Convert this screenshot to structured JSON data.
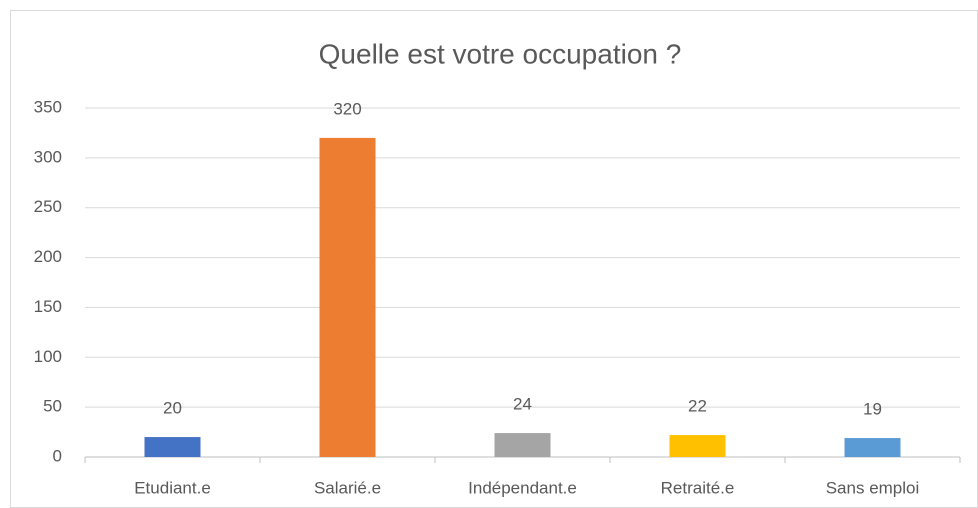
{
  "chart_data": {
    "type": "bar",
    "title": "Quelle est votre occupation ?",
    "categories": [
      "Etudiant.e",
      "Salarié.e",
      "Indépendant.e",
      "Retraité.e",
      "Sans emploi"
    ],
    "values": [
      20,
      320,
      24,
      22,
      19
    ],
    "colors": [
      "#4472c4",
      "#ed7d31",
      "#a5a5a5",
      "#ffc000",
      "#5b9bd5"
    ],
    "ylim": [
      0,
      350
    ],
    "yticks": [
      0,
      50,
      100,
      150,
      200,
      250,
      300,
      350
    ],
    "grid": true
  }
}
